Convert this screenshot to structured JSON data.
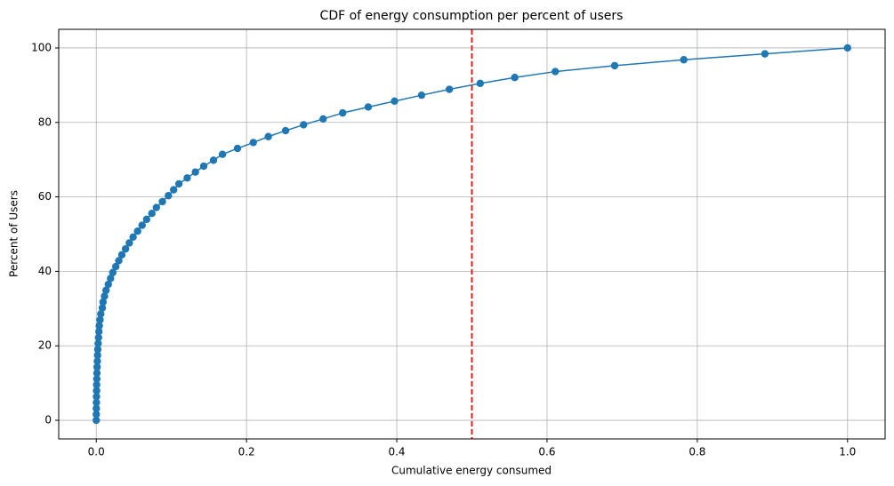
{
  "chart_data": {
    "type": "line",
    "title": "CDF of energy consumption per percent of users",
    "xlabel": "Cumulative energy consumed",
    "ylabel": "Percent of Users",
    "x": [
      0,
      5e-05,
      0.0001,
      0.0002,
      0.0003,
      0.0004,
      0.0005,
      0.0007,
      0.0009,
      0.0011,
      0.0014,
      0.0017,
      0.002,
      0.0025,
      0.003,
      0.0035,
      0.004,
      0.005,
      0.006,
      0.008,
      0.009,
      0.011,
      0.013,
      0.016,
      0.019,
      0.022,
      0.026,
      0.03,
      0.034,
      0.039,
      0.044,
      0.049,
      0.055,
      0.061,
      0.067,
      0.074,
      0.08,
      0.088,
      0.096,
      0.103,
      0.11,
      0.121,
      0.132,
      0.143,
      0.156,
      0.168,
      0.188,
      0.209,
      0.229,
      0.252,
      0.276,
      0.302,
      0.328,
      0.362,
      0.397,
      0.433,
      0.47,
      0.511,
      0.557,
      0.611,
      0.69,
      0.782,
      0.89,
      1.0
    ],
    "series": [
      {
        "color": "#1f77b4",
        "values": [
          0,
          1.59,
          3.17,
          4.76,
          6.35,
          7.94,
          9.52,
          11.11,
          12.7,
          14.29,
          15.87,
          17.46,
          19.05,
          20.63,
          22.22,
          23.81,
          25.4,
          26.98,
          28.57,
          30.16,
          31.75,
          33.33,
          34.92,
          36.51,
          38.1,
          39.68,
          41.27,
          42.86,
          44.44,
          46.03,
          47.62,
          49.21,
          50.79,
          52.38,
          53.97,
          55.56,
          57.14,
          58.73,
          60.32,
          61.9,
          63.49,
          65.08,
          66.67,
          68.25,
          69.84,
          71.43,
          73.02,
          74.6,
          76.19,
          77.78,
          79.37,
          80.95,
          82.54,
          84.13,
          85.71,
          87.3,
          88.89,
          90.48,
          92.06,
          93.65,
          95.24,
          96.83,
          98.41,
          100
        ]
      }
    ],
    "vline": {
      "x": 0.5,
      "color": "#ff0000"
    },
    "xlim": [
      -0.05,
      1.05
    ],
    "ylim": [
      -5,
      105
    ],
    "xticks": [
      {
        "value": 0,
        "label": "0.0"
      },
      {
        "value": 0.2,
        "label": "0.2"
      },
      {
        "value": 0.4,
        "label": "0.4"
      },
      {
        "value": 0.6,
        "label": "0.6"
      },
      {
        "value": 0.8,
        "label": "0.8"
      },
      {
        "value": 1,
        "label": "1.0"
      }
    ],
    "yticks": [
      0,
      20,
      40,
      60,
      80,
      100
    ],
    "grid": true
  }
}
